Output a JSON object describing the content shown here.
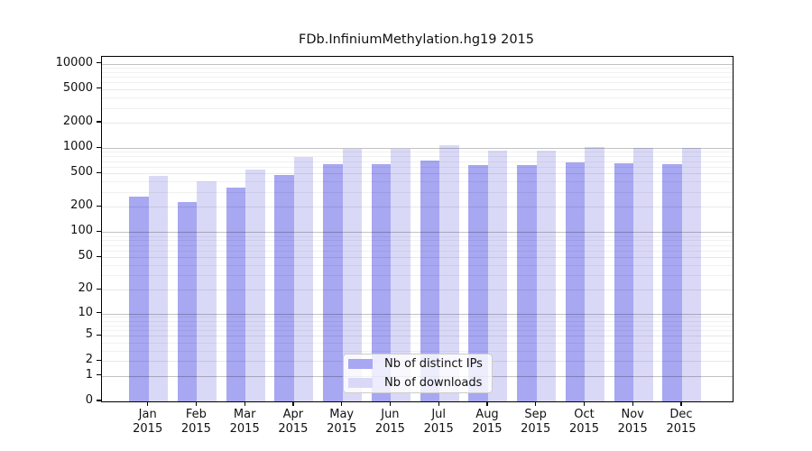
{
  "title": "FDb.InfiniumMethylation.hg19 2015",
  "colors": {
    "distinct_ips_bar": "#a7a7f2",
    "downloads_bar": "#d9d9f7",
    "axis": "#000000",
    "grid_major": "rgba(0,0,0,0.24)",
    "grid_mid": "rgba(0,0,0,0.09)",
    "grid_minor": "rgba(0,0,0,0.055)",
    "legend_border": "#cccccc"
  },
  "chart_data": {
    "type": "bar",
    "title": "FDb.InfiniumMethylation.hg19 2015",
    "categories": [
      "Jan",
      "Feb",
      "Mar",
      "Apr",
      "May",
      "Jun",
      "Jul",
      "Aug",
      "Sep",
      "Oct",
      "Nov",
      "Dec"
    ],
    "year_label": "2015",
    "series": [
      {
        "name": "Nb of distinct IPs",
        "color": "#a7a7f2",
        "values": [
          265,
          230,
          340,
          475,
          650,
          640,
          715,
          630,
          625,
          680,
          660,
          650
        ]
      },
      {
        "name": "Nb of downloads",
        "color": "#d9d9f7",
        "values": [
          465,
          405,
          550,
          780,
          990,
          990,
          1090,
          930,
          940,
          1040,
          1010,
          1000
        ]
      }
    ],
    "y_ticks": [
      0,
      1,
      2,
      5,
      10,
      20,
      50,
      100,
      200,
      500,
      1000,
      2000,
      5000,
      10000
    ],
    "y_scale": "log10(1+x)",
    "ylim": [
      0,
      11800
    ],
    "xlabel": "",
    "ylabel": "",
    "grid": true,
    "legend_position": "bottom-center"
  }
}
